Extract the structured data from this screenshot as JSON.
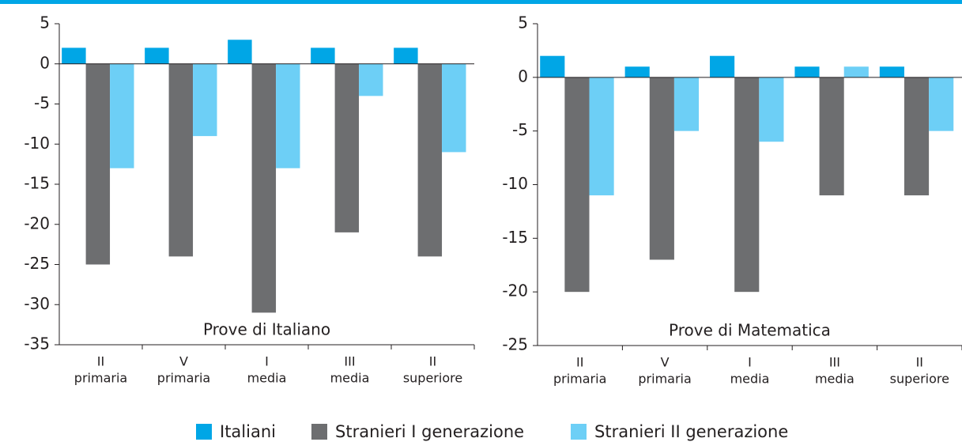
{
  "chart_data": [
    {
      "type": "bar",
      "annotation": "Prove di Italiano",
      "categories": [
        [
          "II",
          "primaria"
        ],
        [
          "V",
          "primaria"
        ],
        [
          "I",
          "media"
        ],
        [
          "III",
          "media"
        ],
        [
          "II",
          "superiore"
        ]
      ],
      "series": [
        {
          "name": "Italiani",
          "color": "#00a6e6",
          "values": [
            2,
            2,
            3,
            2,
            2
          ]
        },
        {
          "name": "Stranieri I generazione",
          "color": "#6d6e70",
          "values": [
            -25,
            -24,
            -31,
            -21,
            -24
          ]
        },
        {
          "name": "Stranieri II generazione",
          "color": "#6dcff6",
          "values": [
            -13,
            -9,
            -13,
            -4,
            -11
          ]
        }
      ],
      "ylim": [
        -35,
        5
      ],
      "yticks": [
        -35,
        -30,
        -25,
        -20,
        -15,
        -10,
        -5,
        0,
        5
      ]
    },
    {
      "type": "bar",
      "annotation": "Prove di Matematica",
      "categories": [
        [
          "II",
          "primaria"
        ],
        [
          "V",
          "primaria"
        ],
        [
          "I",
          "media"
        ],
        [
          "III",
          "media"
        ],
        [
          "II",
          "superiore"
        ]
      ],
      "series": [
        {
          "name": "Italiani",
          "color": "#00a6e6",
          "values": [
            2,
            1,
            2,
            1,
            1
          ]
        },
        {
          "name": "Stranieri I generazione",
          "color": "#6d6e70",
          "values": [
            -20,
            -17,
            -20,
            -11,
            -11
          ]
        },
        {
          "name": "Stranieri II generazione",
          "color": "#6dcff6",
          "values": [
            -11,
            -5,
            -6,
            1,
            -5
          ]
        }
      ],
      "ylim": [
        -25,
        5
      ],
      "yticks": [
        -25,
        -20,
        -15,
        -10,
        -5,
        0,
        5
      ]
    }
  ]
}
